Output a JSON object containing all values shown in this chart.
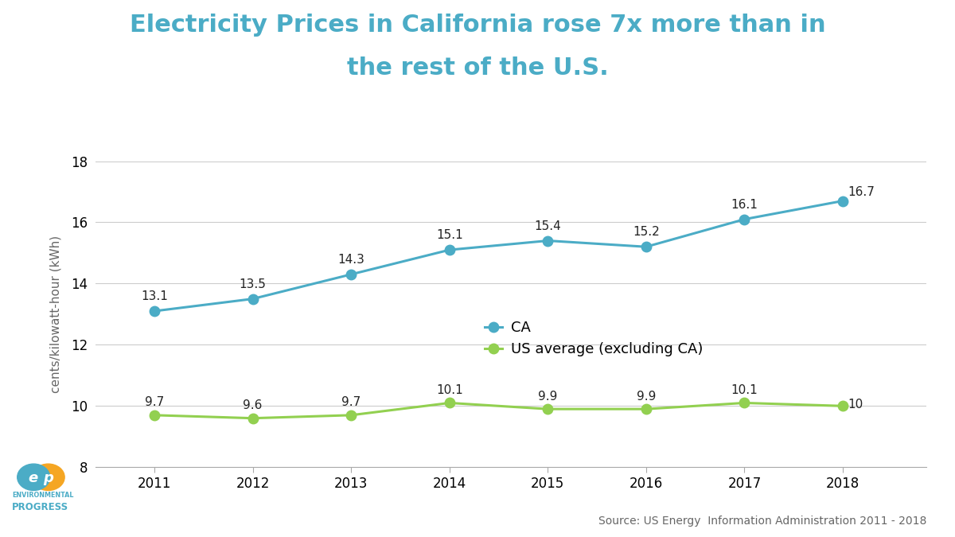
{
  "title_line1": "Electricity Prices in California rose 7x more than in",
  "title_line2": "the rest of the U.S.",
  "title_color": "#4BACC6",
  "years": [
    2011,
    2012,
    2013,
    2014,
    2015,
    2016,
    2017,
    2018
  ],
  "ca_values": [
    13.1,
    13.5,
    14.3,
    15.1,
    15.4,
    15.2,
    16.1,
    16.7
  ],
  "us_values": [
    9.7,
    9.6,
    9.7,
    10.1,
    9.9,
    9.9,
    10.1,
    10.0
  ],
  "ca_labels": [
    "13.1",
    "13.5",
    "14.3",
    "15.1",
    "15.4",
    "15.2",
    "16.1",
    "16.7"
  ],
  "us_labels": [
    "9.7",
    "9.6",
    "9.7",
    "10.1",
    "9.9",
    "9.9",
    "10.1",
    "10"
  ],
  "ca_color": "#4BACC6",
  "us_color": "#92D050",
  "ca_label": "CA",
  "us_label": "US average (excluding CA)",
  "ylabel": "cents/kilowatt-hour (kWh)",
  "ylim": [
    8,
    18
  ],
  "yticks": [
    8,
    10,
    12,
    14,
    16,
    18
  ],
  "source_text": "Source: US Energy  Information Administration 2011 - 2018",
  "source_fontsize": 10,
  "background_color": "#ffffff",
  "grid_color": "#cccccc",
  "label_fontsize": 11,
  "title_fontsize": 22,
  "axis_label_fontsize": 11,
  "legend_fontsize": 13,
  "tick_fontsize": 12,
  "logo_teal": "#4BACC6",
  "logo_yellow": "#F5A623",
  "ep_text_color": "#4BACC6"
}
